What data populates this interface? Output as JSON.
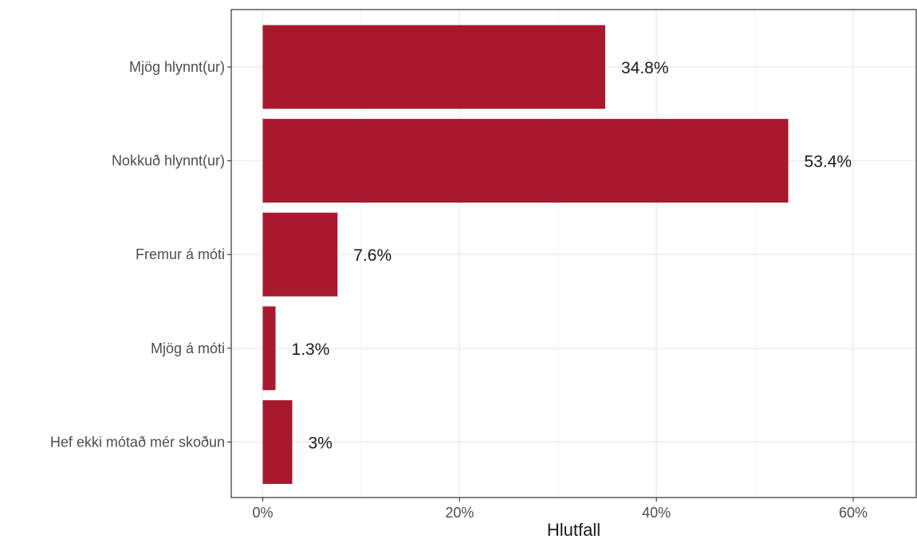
{
  "chart_data": {
    "type": "bar",
    "orientation": "horizontal",
    "categories": [
      "Mjög hlynnt(ur)",
      "Nokkuð hlynnt(ur)",
      "Fremur á móti",
      "Mjög á móti",
      "Hef ekki mótað mér skoðun"
    ],
    "values": [
      34.8,
      53.4,
      7.6,
      1.3,
      3.0
    ],
    "data_labels": [
      "34.8%",
      "53.4%",
      "7.6%",
      "1.3%",
      "3%"
    ],
    "title": "",
    "xlabel": "Hlutfall",
    "ylabel": "",
    "xlim": [
      -3.2,
      66.4
    ],
    "x_ticks": [
      0,
      20,
      40,
      60
    ],
    "x_tick_labels": [
      "0%",
      "20%",
      "40%",
      "60%"
    ],
    "grid": true,
    "bar_color": "#a8192e"
  }
}
